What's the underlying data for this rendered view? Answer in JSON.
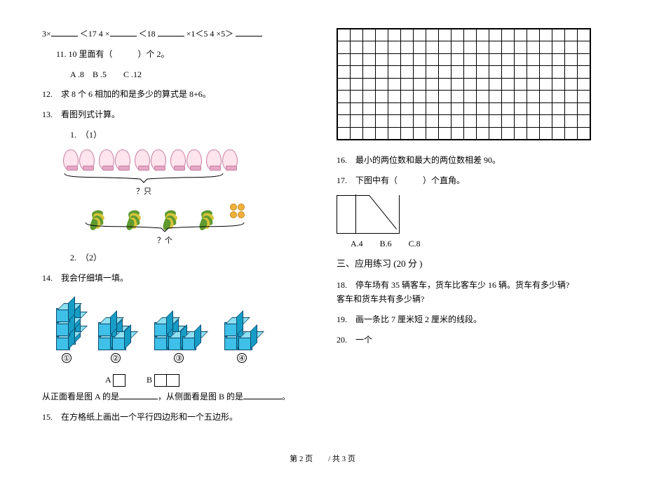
{
  "left": {
    "expr_line": {
      "p1": "3×",
      "p2": "＜17 4 ×",
      "p3": "＜18",
      "p4": "×1＜5 4 ×5＞"
    },
    "q11": "11. 10 里面有（　　　）个 2。",
    "q11_choices": "A .8　B .5　　C .12",
    "q12": "12.　求 8 个 6 相加的和是多少的算式是  8+6。",
    "q13": "13.　看图列式计算。",
    "q13_1": "1.　（1）",
    "mitten_count": 5,
    "mitten_brace_label": "？只",
    "basket_brace_label": "？个",
    "q13_2": "2.　（2）",
    "q14": "14.　我会仔细填一填。",
    "cubes": {
      "labels": [
        "①",
        "②",
        "③",
        "④"
      ],
      "colors": {
        "front": "#3fc0e8",
        "top": "#8fdff2",
        "side": "#169dc6",
        "border": "#0a4a6a"
      }
    },
    "ab_a": "A",
    "ab_b": "B",
    "q14_text": {
      "a": "从正面看是图  A 的是",
      "b": "，从侧面看是图  B 的是",
      "c": "。"
    },
    "q15": "15.　在方格纸上画出一个平行四边形和一个五边形。"
  },
  "right": {
    "grid": {
      "rows": 9,
      "cols": 20,
      "border": "#000000"
    },
    "q16": "16.　最小的两位数和最大的两位数相差   90。",
    "q17": "17.　下图中有（　　　）个直角。",
    "q17_choices": "A.4　　B.6　　C.8",
    "section3": "三、应用练习  (20 分 )",
    "q18a": "18.　停车场有 35 辆客车，货车比客车少 16 辆。货车有多少辆?",
    "q18b": "客车和货车共有多少辆?",
    "q19": "19.　画一条比 7 厘米短 2 厘米的线段。",
    "q20": "20.　一个"
  },
  "footer": "第 2 页　　/ 共 3 页",
  "colors": {
    "mitten_fill": "#fde4ed",
    "mitten_border": "#c77da0",
    "leaf_green": "#5f9a2f",
    "leaf_yellow": "#d7c53a",
    "coin_fill": "#f1b13a",
    "coin_border": "#c58a1e"
  }
}
